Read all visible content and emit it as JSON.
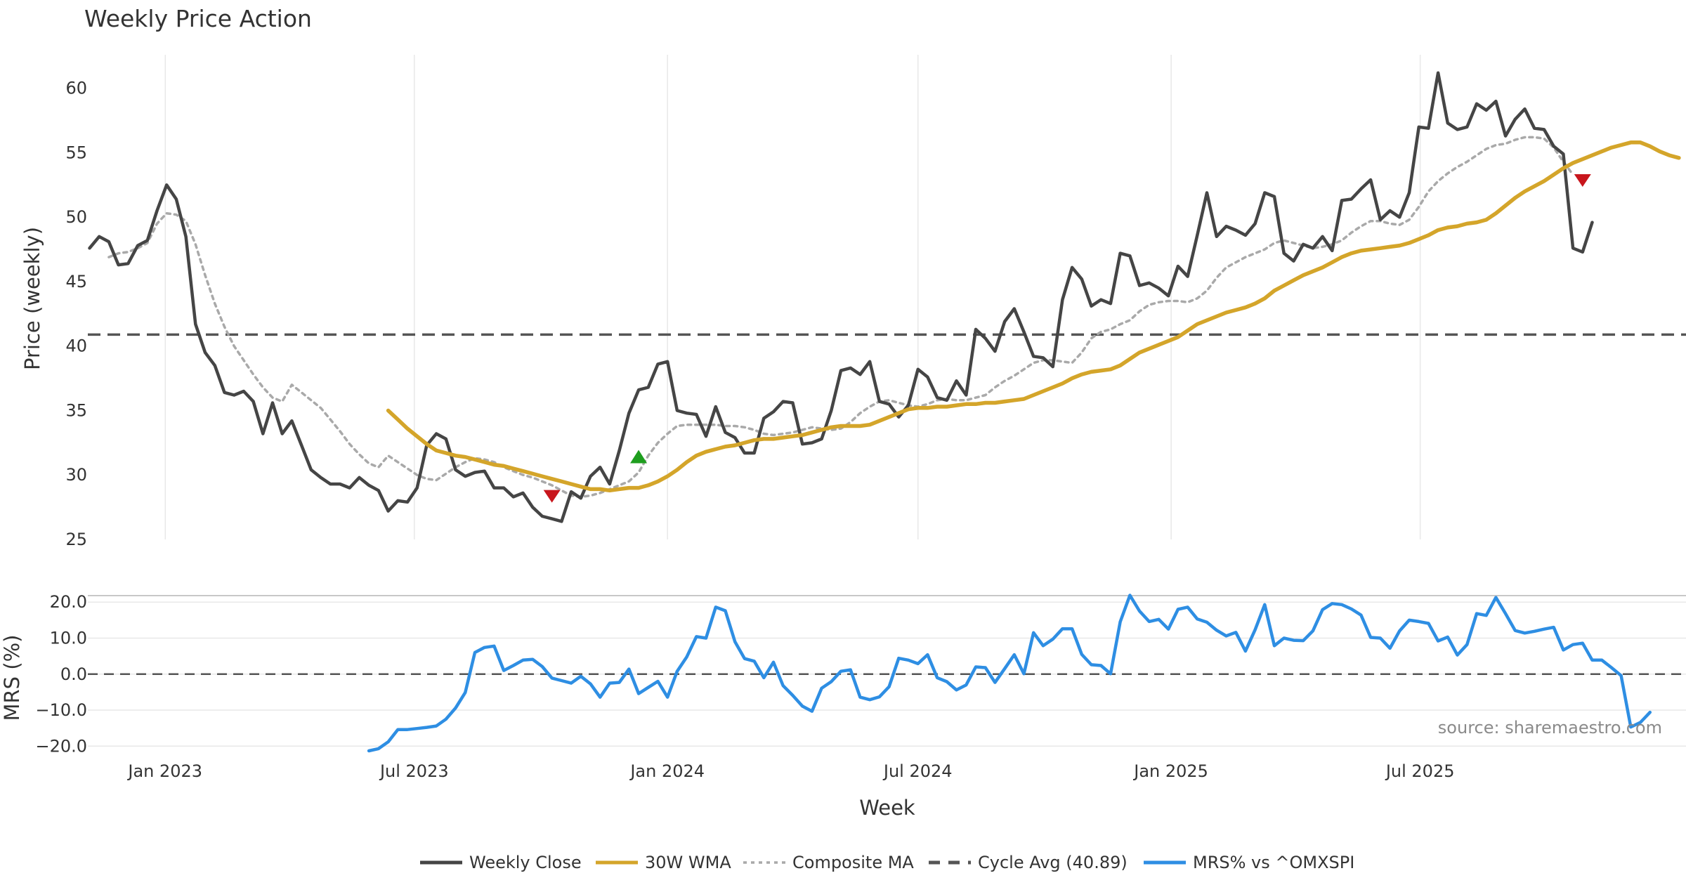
{
  "colors": {
    "close": "#454545",
    "wma": "#d4a52a",
    "composite": "#a9a9a9",
    "cycle": "#555555",
    "mrs": "#2e8ee3",
    "buy": "#1e9e1e",
    "sell": "#c8161d",
    "grid": "#e8e8e8"
  },
  "source": "source: sharemaestro.com",
  "legend": [
    {
      "label": "Weekly Close",
      "color": "#454545",
      "style": "solid"
    },
    {
      "label": "30W WMA",
      "color": "#d4a52a",
      "style": "solid"
    },
    {
      "label": "Composite MA",
      "color": "#a9a9a9",
      "style": "dotted"
    },
    {
      "label": "Cycle Avg (40.89)",
      "color": "#555555",
      "style": "dashed"
    },
    {
      "label": "MRS% vs ^OMXSPI",
      "color": "#2e8ee3",
      "style": "solid"
    }
  ],
  "chart_data": [
    {
      "type": "line",
      "title": "Weekly Price Action",
      "ylabel": "Price (weekly)",
      "xlabel": "Week",
      "ylim": [
        25,
        62.6
      ],
      "yticks": [
        25,
        30,
        35,
        40,
        45,
        50,
        55,
        60
      ],
      "xticks": [
        "Jan 2023",
        "Jul 2023",
        "Jan 2024",
        "Jul 2024",
        "Jan 2025",
        "Jul 2025"
      ],
      "grid": true,
      "reference_line": {
        "name": "Cycle Avg (40.89)",
        "value": 40.89
      },
      "series": [
        {
          "name": "Weekly Close",
          "start": "2022-11-07",
          "values": [
            47.6,
            48.5,
            48.1,
            46.3,
            46.4,
            47.8,
            48.2,
            50.5,
            52.5,
            51.4,
            48.5,
            41.7,
            39.5,
            38.5,
            36.4,
            36.2,
            36.5,
            35.7,
            33.2,
            35.6,
            33.2,
            34.2,
            32.3,
            30.4,
            29.8,
            29.3,
            29.3,
            29.0,
            29.8,
            29.2,
            28.8,
            27.2,
            28.0,
            27.9,
            29.0,
            32.3,
            33.2,
            32.8,
            30.4,
            29.9,
            30.2,
            30.3,
            29.0,
            29.0,
            28.3,
            28.6,
            27.5,
            26.8,
            26.6,
            26.4,
            28.7,
            28.2,
            29.9,
            30.6,
            29.3,
            31.9,
            34.8,
            36.6,
            36.8,
            38.6,
            38.8,
            35.0,
            34.8,
            34.7,
            33.0,
            35.3,
            33.3,
            32.9,
            31.7,
            31.7,
            34.4,
            34.9,
            35.7,
            35.6,
            32.4,
            32.5,
            32.8,
            35.0,
            38.1,
            38.3,
            37.8,
            38.8,
            35.7,
            35.5,
            34.5,
            35.4,
            38.2,
            37.6,
            36.0,
            35.8,
            37.3,
            36.2,
            41.3,
            40.6,
            39.6,
            41.9,
            42.9,
            41.1,
            39.2,
            39.1,
            38.4,
            43.6,
            46.1,
            45.2,
            43.1,
            43.6,
            43.3,
            47.2,
            47.0,
            44.7,
            44.9,
            44.5,
            43.9,
            46.2,
            45.4,
            48.6,
            51.9,
            48.5,
            49.3,
            49.0,
            48.6,
            49.5,
            51.9,
            51.6,
            47.2,
            46.6,
            47.9,
            47.6,
            48.5,
            47.4,
            51.3,
            51.4,
            52.2,
            52.9,
            49.8,
            50.5,
            50.0,
            51.9,
            57.0,
            56.9,
            61.2,
            57.3,
            56.8,
            57.0,
            58.8,
            58.3,
            59.0,
            56.3,
            57.6,
            58.4,
            56.9,
            56.8,
            55.5,
            54.9,
            47.6,
            47.3,
            49.6
          ]
        },
        {
          "name": "30W WMA",
          "start": "2023-06-12",
          "values": [
            35.0,
            34.3,
            33.6,
            33.0,
            32.4,
            31.9,
            31.7,
            31.5,
            31.4,
            31.2,
            31.0,
            30.8,
            30.7,
            30.5,
            30.3,
            30.1,
            29.9,
            29.7,
            29.5,
            29.3,
            29.1,
            28.9,
            28.9,
            28.8,
            28.9,
            29.0,
            29.0,
            29.2,
            29.5,
            29.9,
            30.4,
            31.0,
            31.5,
            31.8,
            32.0,
            32.2,
            32.3,
            32.5,
            32.7,
            32.8,
            32.8,
            32.9,
            33.0,
            33.1,
            33.3,
            33.5,
            33.7,
            33.8,
            33.8,
            33.8,
            33.9,
            34.2,
            34.5,
            34.8,
            35.1,
            35.2,
            35.2,
            35.3,
            35.3,
            35.4,
            35.5,
            35.5,
            35.6,
            35.6,
            35.7,
            35.8,
            35.9,
            36.2,
            36.5,
            36.8,
            37.1,
            37.5,
            37.8,
            38.0,
            38.1,
            38.2,
            38.5,
            39.0,
            39.5,
            39.8,
            40.1,
            40.4,
            40.7,
            41.2,
            41.7,
            42.0,
            42.3,
            42.6,
            42.8,
            43.0,
            43.3,
            43.7,
            44.3,
            44.7,
            45.1,
            45.5,
            45.8,
            46.1,
            46.5,
            46.9,
            47.2,
            47.4,
            47.5,
            47.6,
            47.7,
            47.8,
            48.0,
            48.3,
            48.6,
            49.0,
            49.2,
            49.3,
            49.5,
            49.6,
            49.8,
            50.3,
            50.9,
            51.5,
            52.0,
            52.4,
            52.8,
            53.3,
            53.8,
            54.2,
            54.5,
            54.8,
            55.1,
            55.4,
            55.6,
            55.8,
            55.8,
            55.5,
            55.1,
            54.8,
            54.6
          ]
        },
        {
          "name": "Composite MA",
          "start": "2022-11-21",
          "values": [
            46.9,
            47.2,
            47.3,
            47.6,
            48.0,
            49.5,
            50.3,
            50.2,
            49.7,
            47.9,
            45.5,
            43.3,
            41.5,
            40.0,
            38.9,
            37.8,
            36.8,
            36.0,
            35.7,
            37.0,
            36.4,
            35.8,
            35.2,
            34.3,
            33.4,
            32.4,
            31.6,
            30.9,
            30.6,
            31.5,
            31.0,
            30.5,
            30.0,
            29.7,
            29.6,
            30.1,
            30.6,
            31.0,
            31.3,
            31.2,
            31.0,
            30.6,
            30.3,
            30.0,
            29.8,
            29.5,
            29.2,
            28.8,
            28.4,
            28.3,
            28.4,
            28.6,
            28.9,
            29.2,
            29.5,
            30.2,
            31.5,
            32.5,
            33.2,
            33.8,
            33.9,
            33.9,
            33.9,
            33.9,
            33.8,
            33.8,
            33.7,
            33.5,
            33.2,
            33.1,
            33.2,
            33.3,
            33.5,
            33.7,
            33.6,
            33.5,
            33.6,
            34.1,
            34.8,
            35.3,
            35.7,
            35.8,
            35.6,
            35.4,
            35.3,
            35.5,
            35.8,
            35.9,
            35.8,
            35.8,
            36.0,
            36.2,
            36.8,
            37.3,
            37.7,
            38.2,
            38.7,
            38.9,
            38.9,
            38.8,
            38.7,
            39.5,
            40.6,
            41.1,
            41.3,
            41.7,
            42.0,
            42.7,
            43.2,
            43.4,
            43.5,
            43.5,
            43.4,
            43.7,
            44.3,
            45.3,
            46.1,
            46.5,
            46.9,
            47.2,
            47.5,
            48.0,
            48.2,
            48.0,
            47.8,
            47.6,
            47.7,
            47.9,
            48.2,
            48.8,
            49.3,
            49.7,
            49.7,
            49.5,
            49.4,
            49.8,
            50.8,
            52.0,
            52.8,
            53.4,
            53.9,
            54.3,
            54.8,
            55.3,
            55.6,
            55.7,
            56.0,
            56.2,
            56.2,
            56.1,
            55.4,
            54.3,
            53.3
          ]
        }
      ],
      "markers": [
        {
          "type": "sell",
          "x": "2023-10-09",
          "y": 28.4
        },
        {
          "type": "buy",
          "x": "2023-12-11",
          "y": 31.4
        },
        {
          "type": "sell",
          "x": "2025-10-27",
          "y": 52.9
        }
      ]
    },
    {
      "type": "line",
      "ylabel": "MRS (%)",
      "ylim": [
        -21.5,
        21.8
      ],
      "yticks": [
        -20,
        -10,
        0,
        10,
        20
      ],
      "ytick_labels": [
        "−20.0",
        "−10.0",
        "0.0",
        "10.0",
        "20.0"
      ],
      "grid": true,
      "reference_line": {
        "value": 0
      },
      "series": [
        {
          "name": "MRS% vs ^OMXSPI",
          "start": "2023-05-29",
          "values": [
            -21.3,
            -20.7,
            -18.8,
            -15.4,
            -15.4,
            -15.1,
            -14.8,
            -14.4,
            -12.5,
            -9.4,
            -5.1,
            6.0,
            7.4,
            7.8,
            1.0,
            2.4,
            3.9,
            4.1,
            2.1,
            -1.1,
            -1.8,
            -2.5,
            -0.6,
            -2.7,
            -6.4,
            -2.5,
            -2.3,
            1.4,
            -5.4,
            -3.7,
            -2.0,
            -6.4,
            0.8,
            4.8,
            10.4,
            10.0,
            18.6,
            17.6,
            9.0,
            4.3,
            3.6,
            -1.0,
            3.3,
            -3.2,
            -5.9,
            -8.9,
            -10.3,
            -3.9,
            -2.1,
            0.8,
            1.2,
            -6.4,
            -7.1,
            -6.3,
            -3.5,
            4.4,
            3.9,
            2.9,
            5.4,
            -1.0,
            -2.1,
            -4.4,
            -3.0,
            2.0,
            1.8,
            -2.3,
            1.5,
            5.4,
            0.1,
            11.5,
            7.9,
            9.7,
            12.6,
            12.6,
            5.5,
            2.6,
            2.4,
            0.1,
            14.5,
            21.9,
            17.5,
            14.6,
            15.2,
            12.5,
            18.0,
            18.6,
            15.3,
            14.4,
            12.2,
            10.6,
            11.6,
            6.4,
            12.3,
            19.3,
            7.9,
            10.0,
            9.4,
            9.3,
            12.0,
            17.9,
            19.6,
            19.3,
            18.1,
            16.4,
            10.2,
            10.0,
            7.2,
            12.0,
            15.0,
            14.6,
            14.1,
            9.2,
            10.3,
            5.3,
            8.2,
            16.8,
            16.3,
            21.3,
            16.8,
            12.1,
            11.4,
            11.9,
            12.5,
            13.0,
            6.7,
            8.2,
            8.6,
            3.9,
            3.9,
            1.8,
            -0.4,
            -14.7,
            -13.4,
            -10.6
          ]
        }
      ]
    }
  ]
}
